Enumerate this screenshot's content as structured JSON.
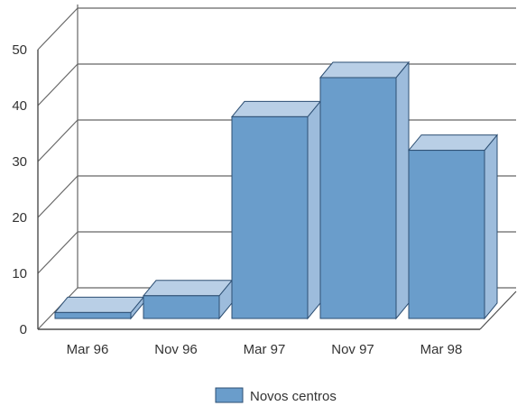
{
  "chart_data": {
    "type": "bar",
    "categories": [
      "Mar 96",
      "Nov 96",
      "Mar 97",
      "Nov 97",
      "Mar 98"
    ],
    "series": [
      {
        "name": "Novos centros",
        "values": [
          3,
          6,
          38,
          45,
          32
        ]
      }
    ],
    "title": "",
    "xlabel": "",
    "ylabel": "",
    "ylim": [
      0,
      50
    ],
    "yticks": [
      "0",
      "10",
      "20",
      "30",
      "40",
      "50"
    ],
    "grid": true,
    "legend": "bottom",
    "three_d": true,
    "colors": {
      "bar_front": "#6a9dcb",
      "bar_top": "#b9cfe6",
      "bar_side": "#9dbcdc",
      "bar_edge": "#2d4f73",
      "grid": "#666666",
      "axis": "#4d4d4d",
      "text": "#333333"
    }
  }
}
